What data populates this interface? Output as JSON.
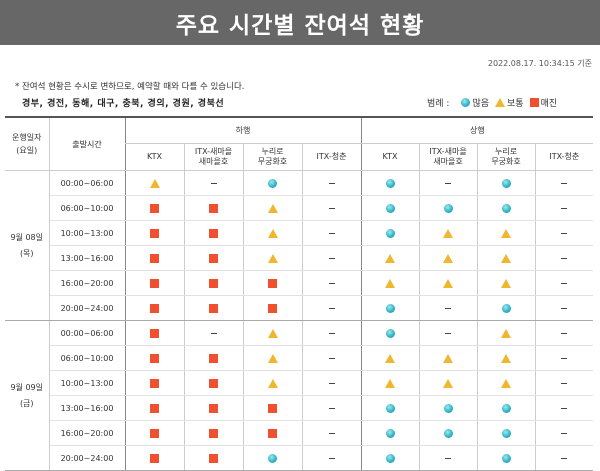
{
  "title": "주요 시간별 잔여석 현황",
  "timestamp": "2022.08.17. 10:34:15 기준",
  "notice": "* 잔여석 현황은 수시로 변하므로, 예약할 때와 다를 수 있습니다.",
  "routes": "경부, 경전, 동해, 대구, 충북, 경의, 경원, 경북선",
  "legend": {
    "label": "범례 :",
    "items": [
      {
        "symbol": "circle",
        "label": "많음"
      },
      {
        "symbol": "triangle",
        "label": "보통"
      },
      {
        "symbol": "square",
        "label": "매진"
      }
    ]
  },
  "colors": {
    "header_bg": "#676767",
    "many": "#32b5c5",
    "normal": "#f0b62e",
    "soldout": "#ee5030"
  },
  "table": {
    "col_date": "운행일자\n(요일)",
    "col_time": "출발시간",
    "dir_down": "하행",
    "dir_up": "상행",
    "train_types": [
      "KTX",
      "ITX-새마을\n새마을호",
      "누리로\n무궁화호",
      "ITX-청춘"
    ],
    "groups": [
      {
        "date": "9월 08일\n(목)",
        "rows": [
          {
            "time": "00:00~06:00",
            "down": [
              "triangle",
              "dash",
              "circle",
              "dash"
            ],
            "up": [
              "circle",
              "dash",
              "circle",
              "dash"
            ]
          },
          {
            "time": "06:00~10:00",
            "down": [
              "square",
              "square",
              "triangle",
              "dash"
            ],
            "up": [
              "circle",
              "circle",
              "circle",
              "dash"
            ]
          },
          {
            "time": "10:00~13:00",
            "down": [
              "square",
              "square",
              "triangle",
              "dash"
            ],
            "up": [
              "circle",
              "triangle",
              "triangle",
              "dash"
            ]
          },
          {
            "time": "13:00~16:00",
            "down": [
              "square",
              "square",
              "triangle",
              "dash"
            ],
            "up": [
              "triangle",
              "triangle",
              "triangle",
              "dash"
            ]
          },
          {
            "time": "16:00~20:00",
            "down": [
              "square",
              "square",
              "square",
              "dash"
            ],
            "up": [
              "triangle",
              "triangle",
              "triangle",
              "dash"
            ]
          },
          {
            "time": "20:00~24:00",
            "down": [
              "square",
              "square",
              "square",
              "dash"
            ],
            "up": [
              "circle",
              "dash",
              "circle",
              "dash"
            ]
          }
        ]
      },
      {
        "date": "9월 09일\n(금)",
        "rows": [
          {
            "time": "00:00~06:00",
            "down": [
              "square",
              "dash",
              "triangle",
              "dash"
            ],
            "up": [
              "circle",
              "dash",
              "triangle",
              "dash"
            ]
          },
          {
            "time": "06:00~10:00",
            "down": [
              "square",
              "square",
              "triangle",
              "dash"
            ],
            "up": [
              "triangle",
              "triangle",
              "triangle",
              "dash"
            ]
          },
          {
            "time": "10:00~13:00",
            "down": [
              "square",
              "square",
              "triangle",
              "dash"
            ],
            "up": [
              "triangle",
              "triangle",
              "triangle",
              "dash"
            ]
          },
          {
            "time": "13:00~16:00",
            "down": [
              "square",
              "square",
              "square",
              "dash"
            ],
            "up": [
              "circle",
              "circle",
              "circle",
              "dash"
            ]
          },
          {
            "time": "16:00~20:00",
            "down": [
              "square",
              "square",
              "square",
              "dash"
            ],
            "up": [
              "circle",
              "circle",
              "circle",
              "dash"
            ]
          },
          {
            "time": "20:00~24:00",
            "down": [
              "square",
              "square",
              "circle",
              "dash"
            ],
            "up": [
              "circle",
              "dash",
              "circle",
              "dash"
            ]
          }
        ]
      }
    ]
  }
}
